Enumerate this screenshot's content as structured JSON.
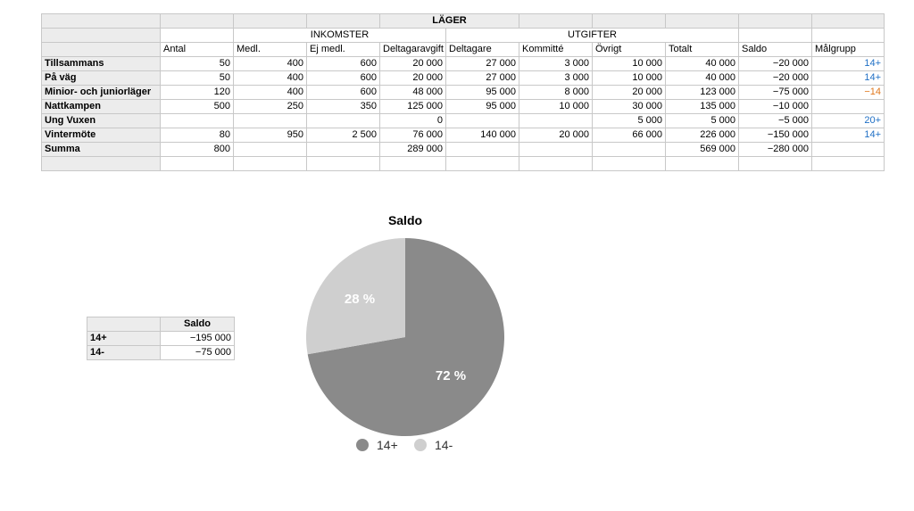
{
  "main_table": {
    "title": "LÄGER",
    "group_income": "INKOMSTER",
    "group_expenses": "UTGIFTER",
    "columns": [
      "Antal",
      "Medl.",
      "Ej medl.",
      "Deltagaravgift",
      "Deltagare",
      "Kommitté",
      "Övrigt",
      "Totalt",
      "Saldo",
      "Målgrupp"
    ],
    "rows": [
      {
        "label": "Tillsammans",
        "cells": [
          "50",
          "400",
          "600",
          "20 000",
          "27 000",
          "3 000",
          "10 000",
          "40 000",
          "−20 000",
          "14+"
        ]
      },
      {
        "label": "På väg",
        "cells": [
          "50",
          "400",
          "600",
          "20 000",
          "27 000",
          "3 000",
          "10 000",
          "40 000",
          "−20 000",
          "14+"
        ]
      },
      {
        "label": "Minior- och juniorläger",
        "cells": [
          "120",
          "400",
          "600",
          "48 000",
          "95 000",
          "8 000",
          "20 000",
          "123 000",
          "−75 000",
          "−14"
        ]
      },
      {
        "label": "Nattkampen",
        "cells": [
          "500",
          "250",
          "350",
          "125 000",
          "95 000",
          "10 000",
          "30 000",
          "135 000",
          "−10 000",
          ""
        ]
      },
      {
        "label": "Ung Vuxen",
        "cells": [
          "",
          "",
          "",
          "0",
          "",
          "",
          "5 000",
          "5 000",
          "−5 000",
          "20+"
        ]
      },
      {
        "label": "Vintermöte",
        "cells": [
          "80",
          "950",
          "2 500",
          "76 000",
          "140 000",
          "20 000",
          "66 000",
          "226 000",
          "−150 000",
          "14+"
        ]
      },
      {
        "label": "Summa",
        "cells": [
          "800",
          "",
          "",
          "289 000",
          "",
          "",
          "",
          "569 000",
          "−280 000",
          ""
        ]
      }
    ]
  },
  "summary_table": {
    "header": "Saldo",
    "rows": [
      {
        "label": "14+",
        "value": "−195 000"
      },
      {
        "label": "14-",
        "value": "−75 000"
      }
    ]
  },
  "chart_data": {
    "type": "pie",
    "title": "Saldo",
    "categories": [
      "14+",
      "14-"
    ],
    "values": [
      195000,
      75000
    ],
    "labels": [
      "72 %",
      "28 %"
    ],
    "colors": [
      "#8a8a8a",
      "#cfcfcf"
    ],
    "legend": "bottom"
  }
}
